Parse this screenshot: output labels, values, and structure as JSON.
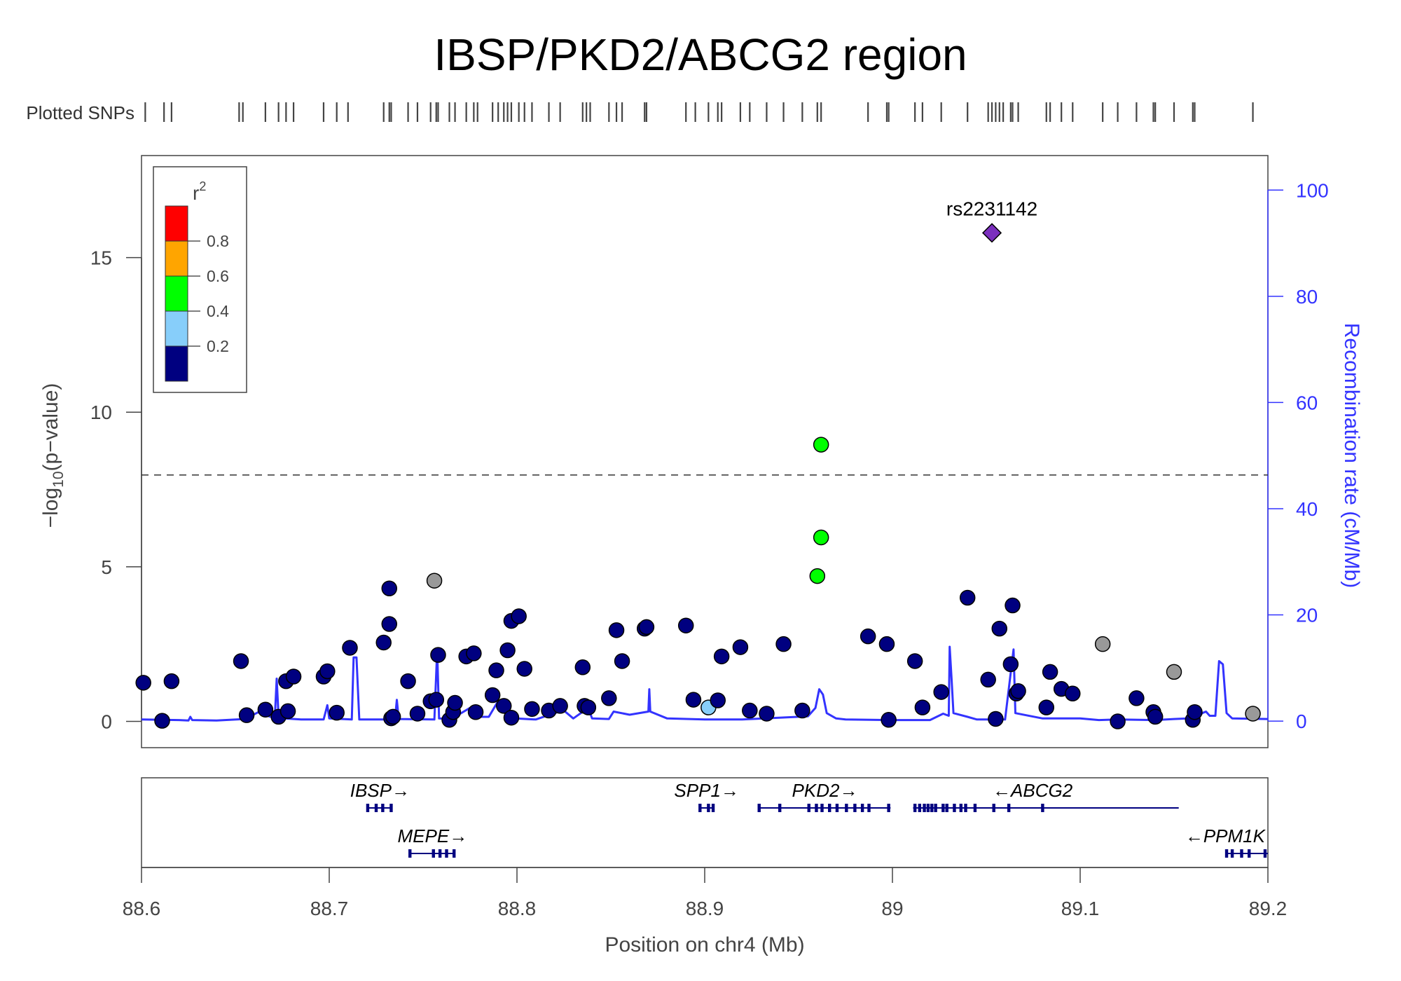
{
  "chart_data": {
    "type": "scatter",
    "title": "IBSP/PKD2/ABCG2 region",
    "snp_track_label": "Plotted SNPs",
    "xlabel": "Position on chr4 (Mb)",
    "ylabel": "−log",
    "ylabel_sub": "10",
    "ylabel_tail": "(p−value)",
    "y2label": "Recombination rate (cM/Mb)",
    "xlim": [
      88.6,
      89.2
    ],
    "ylim": [
      -0.85,
      18.3
    ],
    "y2lim": [
      -5,
      106.5
    ],
    "x_ticks": [
      88.6,
      88.7,
      88.8,
      88.9,
      89.0,
      89.1,
      89.2
    ],
    "x_tick_labels": [
      "88.6",
      "88.7",
      "88.8",
      "88.9",
      "89",
      "89.1",
      "89.2"
    ],
    "y_ticks": [
      0,
      5,
      10,
      15
    ],
    "y_tick_labels": [
      "0",
      "5",
      "10",
      "15"
    ],
    "y2_ticks": [
      0,
      20,
      40,
      60,
      80,
      100
    ],
    "y2_tick_labels": [
      "0",
      "20",
      "40",
      "60",
      "80",
      "100"
    ],
    "significance_threshold": 7.97,
    "lead_snp": {
      "label": "rs2231142",
      "x": 89.053,
      "y": 15.8,
      "color": "#7b2fbe"
    },
    "legend": {
      "title": "r",
      "title_sup": "2",
      "placement": "top-left",
      "bins": [
        {
          "color": "#ff0000"
        },
        {
          "color": "#ffa500"
        },
        {
          "color": "#00ff00"
        },
        {
          "color": "#87cefa"
        },
        {
          "color": "#000080"
        }
      ],
      "labels": [
        "0.8",
        "0.6",
        "0.4",
        "0.2"
      ]
    },
    "colors": {
      "low_ld": "#000080",
      "ld_02_04": "#87cefa",
      "ld_04_06": "#00ff00",
      "no_ld": "#999999",
      "recombination": "#3333ff",
      "genes": "#000080"
    },
    "points": [
      {
        "x": 88.601,
        "y": 1.25,
        "c": "low_ld"
      },
      {
        "x": 88.611,
        "y": 0.02,
        "c": "low_ld"
      },
      {
        "x": 88.616,
        "y": 1.3,
        "c": "low_ld"
      },
      {
        "x": 88.653,
        "y": 1.95,
        "c": "low_ld"
      },
      {
        "x": 88.656,
        "y": 0.2,
        "c": "low_ld"
      },
      {
        "x": 88.666,
        "y": 0.38,
        "c": "low_ld"
      },
      {
        "x": 88.673,
        "y": 0.15,
        "c": "low_ld"
      },
      {
        "x": 88.677,
        "y": 1.3,
        "c": "low_ld"
      },
      {
        "x": 88.678,
        "y": 0.33,
        "c": "low_ld"
      },
      {
        "x": 88.681,
        "y": 1.45,
        "c": "low_ld"
      },
      {
        "x": 88.697,
        "y": 1.45,
        "c": "low_ld"
      },
      {
        "x": 88.699,
        "y": 1.62,
        "c": "low_ld"
      },
      {
        "x": 88.704,
        "y": 0.28,
        "c": "low_ld"
      },
      {
        "x": 88.711,
        "y": 2.38,
        "c": "low_ld"
      },
      {
        "x": 88.729,
        "y": 2.55,
        "c": "low_ld"
      },
      {
        "x": 88.732,
        "y": 3.15,
        "c": "low_ld"
      },
      {
        "x": 88.732,
        "y": 4.3,
        "c": "low_ld"
      },
      {
        "x": 88.733,
        "y": 0.1,
        "c": "low_ld"
      },
      {
        "x": 88.734,
        "y": 0.15,
        "c": "low_ld"
      },
      {
        "x": 88.742,
        "y": 1.3,
        "c": "low_ld"
      },
      {
        "x": 88.747,
        "y": 0.25,
        "c": "low_ld"
      },
      {
        "x": 88.754,
        "y": 0.65,
        "c": "low_ld"
      },
      {
        "x": 88.756,
        "y": 4.55,
        "c": "no_ld"
      },
      {
        "x": 88.757,
        "y": 0.7,
        "c": "low_ld"
      },
      {
        "x": 88.758,
        "y": 2.15,
        "c": "low_ld"
      },
      {
        "x": 88.764,
        "y": 0.05,
        "c": "low_ld"
      },
      {
        "x": 88.766,
        "y": 0.3,
        "c": "low_ld"
      },
      {
        "x": 88.767,
        "y": 0.6,
        "c": "low_ld"
      },
      {
        "x": 88.773,
        "y": 2.1,
        "c": "low_ld"
      },
      {
        "x": 88.777,
        "y": 2.2,
        "c": "low_ld"
      },
      {
        "x": 88.778,
        "y": 0.3,
        "c": "low_ld"
      },
      {
        "x": 88.787,
        "y": 0.85,
        "c": "low_ld"
      },
      {
        "x": 88.789,
        "y": 1.65,
        "c": "low_ld"
      },
      {
        "x": 88.793,
        "y": 0.5,
        "c": "low_ld"
      },
      {
        "x": 88.795,
        "y": 2.3,
        "c": "low_ld"
      },
      {
        "x": 88.797,
        "y": 0.12,
        "c": "low_ld"
      },
      {
        "x": 88.797,
        "y": 3.25,
        "c": "low_ld"
      },
      {
        "x": 88.801,
        "y": 3.4,
        "c": "low_ld"
      },
      {
        "x": 88.804,
        "y": 1.7,
        "c": "low_ld"
      },
      {
        "x": 88.808,
        "y": 0.4,
        "c": "low_ld"
      },
      {
        "x": 88.817,
        "y": 0.35,
        "c": "low_ld"
      },
      {
        "x": 88.823,
        "y": 0.5,
        "c": "low_ld"
      },
      {
        "x": 88.835,
        "y": 1.75,
        "c": "low_ld"
      },
      {
        "x": 88.836,
        "y": 0.5,
        "c": "low_ld"
      },
      {
        "x": 88.838,
        "y": 0.45,
        "c": "low_ld"
      },
      {
        "x": 88.849,
        "y": 0.75,
        "c": "low_ld"
      },
      {
        "x": 88.853,
        "y": 2.95,
        "c": "low_ld"
      },
      {
        "x": 88.856,
        "y": 1.95,
        "c": "low_ld"
      },
      {
        "x": 88.868,
        "y": 3.0,
        "c": "low_ld"
      },
      {
        "x": 88.869,
        "y": 3.05,
        "c": "low_ld"
      },
      {
        "x": 88.89,
        "y": 3.1,
        "c": "low_ld"
      },
      {
        "x": 88.894,
        "y": 0.7,
        "c": "low_ld"
      },
      {
        "x": 88.902,
        "y": 0.45,
        "c": "ld_02_04"
      },
      {
        "x": 88.907,
        "y": 0.68,
        "c": "low_ld"
      },
      {
        "x": 88.909,
        "y": 2.1,
        "c": "low_ld"
      },
      {
        "x": 88.919,
        "y": 2.4,
        "c": "low_ld"
      },
      {
        "x": 88.924,
        "y": 0.35,
        "c": "low_ld"
      },
      {
        "x": 88.933,
        "y": 0.25,
        "c": "low_ld"
      },
      {
        "x": 88.942,
        "y": 2.5,
        "c": "low_ld"
      },
      {
        "x": 88.952,
        "y": 0.35,
        "c": "low_ld"
      },
      {
        "x": 88.96,
        "y": 4.7,
        "c": "ld_04_06"
      },
      {
        "x": 88.962,
        "y": 8.95,
        "c": "ld_04_06"
      },
      {
        "x": 88.962,
        "y": 5.95,
        "c": "ld_04_06"
      },
      {
        "x": 88.987,
        "y": 2.75,
        "c": "low_ld"
      },
      {
        "x": 88.997,
        "y": 2.5,
        "c": "low_ld"
      },
      {
        "x": 88.998,
        "y": 0.05,
        "c": "low_ld"
      },
      {
        "x": 89.012,
        "y": 1.95,
        "c": "low_ld"
      },
      {
        "x": 89.016,
        "y": 0.45,
        "c": "low_ld"
      },
      {
        "x": 89.026,
        "y": 0.95,
        "c": "low_ld"
      },
      {
        "x": 89.04,
        "y": 4.0,
        "c": "low_ld"
      },
      {
        "x": 89.051,
        "y": 1.35,
        "c": "low_ld"
      },
      {
        "x": 89.055,
        "y": 0.08,
        "c": "low_ld"
      },
      {
        "x": 89.057,
        "y": 3.0,
        "c": "low_ld"
      },
      {
        "x": 89.063,
        "y": 1.85,
        "c": "low_ld"
      },
      {
        "x": 89.064,
        "y": 3.75,
        "c": "low_ld"
      },
      {
        "x": 89.066,
        "y": 0.9,
        "c": "low_ld"
      },
      {
        "x": 89.067,
        "y": 0.98,
        "c": "low_ld"
      },
      {
        "x": 89.082,
        "y": 0.45,
        "c": "low_ld"
      },
      {
        "x": 89.084,
        "y": 1.6,
        "c": "low_ld"
      },
      {
        "x": 89.09,
        "y": 1.05,
        "c": "low_ld"
      },
      {
        "x": 89.096,
        "y": 0.9,
        "c": "low_ld"
      },
      {
        "x": 89.112,
        "y": 2.5,
        "c": "no_ld"
      },
      {
        "x": 89.12,
        "y": 0.0,
        "c": "low_ld"
      },
      {
        "x": 89.13,
        "y": 0.75,
        "c": "low_ld"
      },
      {
        "x": 89.139,
        "y": 0.3,
        "c": "low_ld"
      },
      {
        "x": 89.14,
        "y": 0.15,
        "c": "low_ld"
      },
      {
        "x": 89.15,
        "y": 1.6,
        "c": "no_ld"
      },
      {
        "x": 89.16,
        "y": 0.05,
        "c": "low_ld"
      },
      {
        "x": 89.161,
        "y": 0.3,
        "c": "low_ld"
      },
      {
        "x": 89.192,
        "y": 0.25,
        "c": "no_ld"
      }
    ],
    "snp_ticks": [
      88.602,
      88.612,
      88.616,
      88.652,
      88.654,
      88.666,
      88.673,
      88.677,
      88.681,
      88.697,
      88.704,
      88.71,
      88.729,
      88.732,
      88.733,
      88.742,
      88.747,
      88.754,
      88.757,
      88.758,
      88.764,
      88.767,
      88.773,
      88.777,
      88.779,
      88.787,
      88.79,
      88.793,
      88.795,
      88.797,
      88.801,
      88.804,
      88.808,
      88.817,
      88.823,
      88.835,
      88.837,
      88.839,
      88.849,
      88.853,
      88.856,
      88.868,
      88.869,
      88.89,
      88.895,
      88.902,
      88.907,
      88.909,
      88.919,
      88.924,
      88.933,
      88.942,
      88.952,
      88.96,
      88.962,
      88.987,
      88.997,
      88.998,
      89.012,
      89.016,
      89.026,
      89.04,
      89.051,
      89.053,
      89.055,
      89.057,
      89.059,
      89.063,
      89.064,
      89.067,
      89.082,
      89.084,
      89.09,
      89.096,
      89.112,
      89.12,
      89.13,
      89.139,
      89.14,
      89.15,
      89.16,
      89.161,
      89.192
    ],
    "recombination_rate": [
      [
        88.6,
        0.3
      ],
      [
        88.62,
        0.2
      ],
      [
        88.625,
        0.1
      ],
      [
        88.626,
        0.8
      ],
      [
        88.627,
        0.2
      ],
      [
        88.64,
        0.1
      ],
      [
        88.655,
        0.4
      ],
      [
        88.664,
        2.0
      ],
      [
        88.667,
        1.0
      ],
      [
        88.671,
        0.6
      ],
      [
        88.672,
        8.0
      ],
      [
        88.673,
        1.0
      ],
      [
        88.676,
        0.5
      ],
      [
        88.685,
        0.3
      ],
      [
        88.697,
        0.3
      ],
      [
        88.699,
        3.0
      ],
      [
        88.7,
        0.5
      ],
      [
        88.712,
        0.3
      ],
      [
        88.713,
        12.0
      ],
      [
        88.7145,
        12.0
      ],
      [
        88.716,
        0.3
      ],
      [
        88.735,
        0.3
      ],
      [
        88.736,
        4.0
      ],
      [
        88.737,
        0.4
      ],
      [
        88.756,
        0.3
      ],
      [
        88.7575,
        13.5
      ],
      [
        88.7585,
        0.5
      ],
      [
        88.765,
        0.4
      ],
      [
        88.775,
        2.5
      ],
      [
        88.78,
        0.8
      ],
      [
        88.785,
        0.8
      ],
      [
        88.79,
        3.8
      ],
      [
        88.795,
        0.6
      ],
      [
        88.81,
        0.3
      ],
      [
        88.82,
        1.5
      ],
      [
        88.825,
        2.0
      ],
      [
        88.83,
        0.5
      ],
      [
        88.838,
        2.5
      ],
      [
        88.84,
        0.5
      ],
      [
        88.849,
        0.4
      ],
      [
        88.8515,
        1.8
      ],
      [
        88.86,
        1.2
      ],
      [
        88.87,
        1.8
      ],
      [
        88.8705,
        6.0
      ],
      [
        88.871,
        1.8
      ],
      [
        88.88,
        0.5
      ],
      [
        88.9,
        0.3
      ],
      [
        88.92,
        0.3
      ],
      [
        88.955,
        0.9
      ],
      [
        88.959,
        2.5
      ],
      [
        88.961,
        6.0
      ],
      [
        88.963,
        5.0
      ],
      [
        88.965,
        1.5
      ],
      [
        88.97,
        0.5
      ],
      [
        88.975,
        0.3
      ],
      [
        89.0,
        0.2
      ],
      [
        89.02,
        0.2
      ],
      [
        89.027,
        1.4
      ],
      [
        89.03,
        1.0
      ],
      [
        89.0305,
        14.0
      ],
      [
        89.0315,
        8.0
      ],
      [
        89.0325,
        1.5
      ],
      [
        89.04,
        0.8
      ],
      [
        89.045,
        0.3
      ],
      [
        89.06,
        0.3
      ],
      [
        89.0645,
        13.5
      ],
      [
        89.0655,
        1.5
      ],
      [
        89.08,
        0.5
      ],
      [
        89.1,
        0.5
      ],
      [
        89.11,
        0.2
      ],
      [
        89.12,
        0.3
      ],
      [
        89.14,
        0.2
      ],
      [
        89.15,
        0.4
      ],
      [
        89.163,
        0.6
      ],
      [
        89.165,
        1.5
      ],
      [
        89.167,
        1.8
      ],
      [
        89.169,
        1.0
      ],
      [
        89.172,
        1.0
      ],
      [
        89.174,
        11.3
      ],
      [
        89.176,
        10.7
      ],
      [
        89.178,
        1.5
      ],
      [
        89.181,
        0.5
      ],
      [
        89.2,
        0.4
      ]
    ],
    "genes": [
      {
        "name": "IBSP",
        "dir": "right",
        "start": 88.7205,
        "end": 88.7335,
        "row": 0,
        "exons": [
          88.7205,
          88.725,
          88.7285,
          88.733
        ]
      },
      {
        "name": "MEPE",
        "dir": "right",
        "start": 88.743,
        "end": 88.767,
        "row": 1,
        "exons": [
          88.743,
          88.7555,
          88.759,
          88.7625,
          88.7665
        ]
      },
      {
        "name": "SPP1",
        "dir": "right",
        "start": 88.897,
        "end": 88.905,
        "row": 0,
        "exons": [
          88.8975,
          88.902,
          88.9045
        ]
      },
      {
        "name": "PKD2",
        "dir": "right",
        "start": 88.929,
        "end": 88.999,
        "row": 0,
        "exons": [
          88.929,
          88.94,
          88.9555,
          88.9595,
          88.9625,
          88.9665,
          88.9705,
          88.9755,
          88.98,
          88.984,
          88.9875,
          88.998
        ]
      },
      {
        "name": "ABCG2",
        "dir": "left",
        "start": 89.011,
        "end": 89.1525,
        "row": 0,
        "exons": [
          89.012,
          89.0145,
          89.017,
          89.019,
          89.021,
          89.023,
          89.027,
          89.029,
          89.033,
          89.0365,
          89.039,
          89.044,
          89.054,
          89.062,
          89.08
        ]
      },
      {
        "name": "PPM1K",
        "dir": "left",
        "start": 89.1775,
        "end": 89.2,
        "row": 1,
        "exons": [
          89.178,
          89.181,
          89.186,
          89.19,
          89.1985
        ]
      }
    ]
  }
}
